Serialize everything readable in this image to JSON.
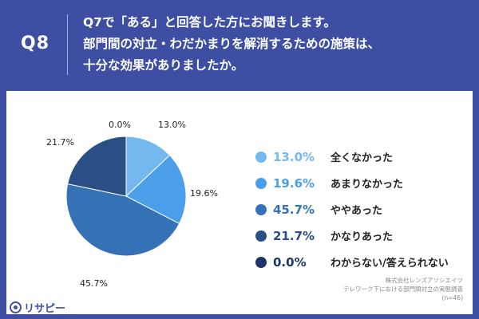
{
  "header": {
    "qnum": "Q8",
    "question_lines": [
      "Q7で「ある」と回答した方にお聞きします。",
      "部門間の対立・わだかまりを解消するための施策は、",
      "十分な効果がありましたか。"
    ],
    "bg_color": "#3e4fa3"
  },
  "chart_data": {
    "type": "pie",
    "title": "",
    "start": "12 o'clock",
    "direction": "clockwise",
    "slices": [
      {
        "name": "全くなかった",
        "value": 13.0,
        "label": "13.0%",
        "color": "#74b8f0"
      },
      {
        "name": "あまりなかった",
        "value": 19.6,
        "label": "19.6%",
        "color": "#4b9fe8"
      },
      {
        "name": "ややあった",
        "value": 45.7,
        "label": "45.7%",
        "color": "#3572b5"
      },
      {
        "name": "かなりあった",
        "value": 21.7,
        "label": "21.7%",
        "color": "#294f84"
      },
      {
        "name": "わからない/答えられない",
        "value": 0.0,
        "label": "0.0%",
        "color": "#1f3566"
      }
    ]
  },
  "credit": {
    "line1": "株式会社レンズアソシエイツ",
    "line2": "テレワーク下における部門間対立の実態調査",
    "line3": "(n=46)"
  },
  "logo": {
    "text": "リサピー",
    "icon": "risapi-logo-icon"
  }
}
